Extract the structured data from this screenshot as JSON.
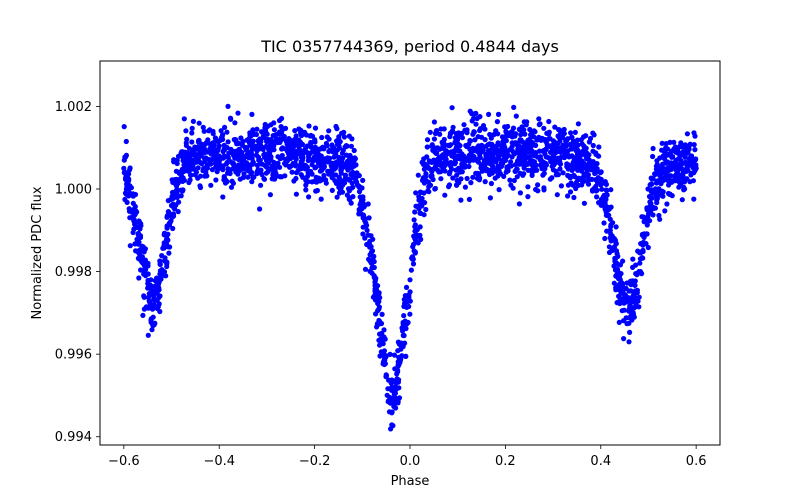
{
  "chart_data": {
    "type": "scatter",
    "title": "TIC 0357744369, period 0.4844 days",
    "xlabel": "Phase",
    "ylabel": "Normalized PDC flux",
    "xlim": [
      -0.65,
      0.65
    ],
    "ylim": [
      0.9938,
      1.0031
    ],
    "xticks": [
      -0.6,
      -0.4,
      -0.2,
      0.0,
      0.2,
      0.4,
      0.6
    ],
    "xtick_labels": [
      "−0.6",
      "−0.4",
      "−0.2",
      "0.0",
      "0.2",
      "0.4",
      "0.6"
    ],
    "yticks": [
      0.994,
      0.996,
      0.998,
      1.0,
      1.002
    ],
    "ytick_labels": [
      "0.994",
      "0.996",
      "0.998",
      "1.000",
      "1.002"
    ],
    "grid": false,
    "legend": "none",
    "marker_color": "#0000ff",
    "series": [
      {
        "x": [
          -0.6,
          -0.59,
          -0.58,
          -0.57,
          -0.56,
          -0.55,
          -0.54,
          -0.53,
          -0.52,
          -0.51,
          -0.5,
          -0.49,
          -0.48,
          -0.47,
          -0.46,
          -0.45,
          -0.4,
          -0.35,
          -0.3,
          -0.25,
          -0.2,
          -0.15,
          -0.12,
          -0.11,
          -0.1,
          -0.09,
          -0.08,
          -0.07,
          -0.06,
          -0.05,
          -0.04,
          -0.03,
          -0.02,
          -0.01,
          0.0,
          0.01,
          0.02,
          0.03,
          0.04,
          0.05,
          0.1,
          0.15,
          0.2,
          0.25,
          0.3,
          0.35,
          0.38,
          0.39,
          0.4,
          0.41,
          0.42,
          0.43,
          0.44,
          0.45,
          0.46,
          0.47,
          0.48,
          0.49,
          0.5,
          0.51,
          0.52,
          0.53,
          0.54,
          0.55,
          0.56,
          0.57,
          0.58,
          0.59,
          0.6
        ],
        "y": [
          1.0005,
          1.0002,
          0.9995,
          0.9988,
          0.9982,
          0.9976,
          0.9971,
          0.9973,
          0.998,
          0.9988,
          0.9996,
          1.0001,
          1.0004,
          1.0006,
          1.0007,
          1.0008,
          1.0008,
          1.0008,
          1.0008,
          1.0008,
          1.0007,
          1.0006,
          1.0004,
          1.0001,
          0.9996,
          0.999,
          0.9982,
          0.9974,
          0.9965,
          0.9955,
          0.9949,
          0.9952,
          0.9959,
          0.9968,
          0.9978,
          0.9988,
          0.9996,
          1.0002,
          1.0005,
          1.0007,
          1.0008,
          1.0009,
          1.0009,
          1.0009,
          1.0008,
          1.0007,
          1.0006,
          1.0004,
          1.0001,
          0.9996,
          0.999,
          0.9983,
          0.9977,
          0.9973,
          0.9971,
          0.9974,
          0.998,
          0.9987,
          0.9994,
          0.9999,
          1.0002,
          1.0004,
          1.0005,
          1.0006,
          1.0006,
          1.0006,
          1.0006,
          1.0006,
          1.0005
        ]
      }
    ]
  }
}
